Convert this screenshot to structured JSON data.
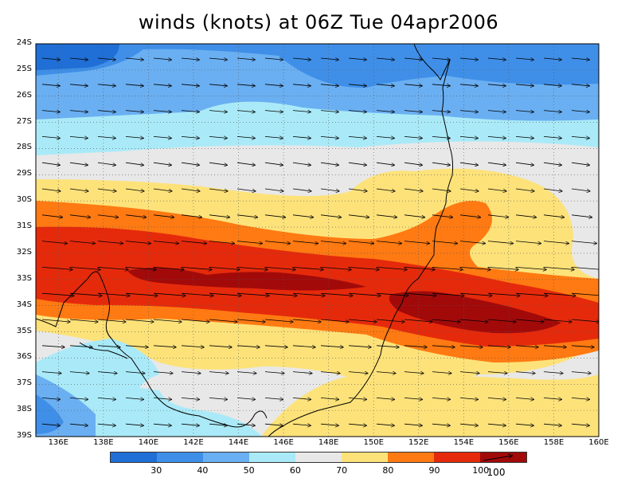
{
  "title": "winds (knots) at 06Z Tue 04apr2006",
  "map": {
    "lat_labels": [
      "24S",
      "25S",
      "26S",
      "27S",
      "28S",
      "29S",
      "30S",
      "31S",
      "32S",
      "33S",
      "34S",
      "35S",
      "36S",
      "37S",
      "38S",
      "39S"
    ],
    "lon_labels": [
      "136E",
      "138E",
      "140E",
      "142E",
      "144E",
      "146E",
      "148E",
      "150E",
      "152E",
      "154E",
      "156E",
      "158E",
      "160E"
    ],
    "lat_range": [
      -39,
      -24
    ],
    "lon_range": [
      135,
      160
    ],
    "grid": "dotted",
    "wind_bands": [
      {
        "name": "band-30",
        "color": "#1f6fd6"
      },
      {
        "name": "band-40",
        "color": "#3f8fe8"
      },
      {
        "name": "band-50",
        "color": "#6aaff2"
      },
      {
        "name": "band-60",
        "color": "#aaeaf8"
      },
      {
        "name": "band-70",
        "color": "#e8e8e8"
      },
      {
        "name": "band-80",
        "color": "#fde27a"
      },
      {
        "name": "band-90",
        "color": "#ff7a12"
      },
      {
        "name": "band-100",
        "color": "#e52a0c"
      },
      {
        "name": "band-max",
        "color": "#a20a0a"
      }
    ]
  },
  "colorbar": {
    "colors": [
      "#1f6fd6",
      "#3f8fe8",
      "#6aaff2",
      "#aaeaf8",
      "#e8e8e8",
      "#fde27a",
      "#ff7a12",
      "#e52a0c",
      "#a20a0a"
    ],
    "labels": [
      "30",
      "40",
      "50",
      "60",
      "70",
      "80",
      "90",
      "100"
    ]
  },
  "vector_legend": {
    "label": "100"
  }
}
